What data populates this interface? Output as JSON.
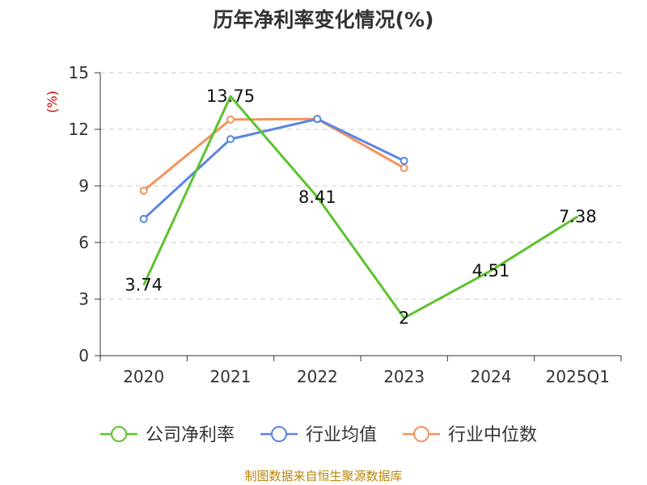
{
  "chart_data": {
    "type": "line",
    "title": "历年净利率变化情况(%)",
    "ylabel": "(%)",
    "xlabel": "",
    "categories": [
      "2020",
      "2021",
      "2022",
      "2023",
      "2024",
      "2025Q1"
    ],
    "ylim": [
      0,
      15
    ],
    "yticks": [
      0,
      3,
      6,
      9,
      12,
      15
    ],
    "grid": true,
    "legend_position": "bottom",
    "series": [
      {
        "name": "公司净利率",
        "color": "#5cc32f",
        "values": [
          3.74,
          13.75,
          8.41,
          2,
          4.51,
          7.38
        ],
        "labels": [
          "3.74",
          "13.75",
          "8.41",
          "2",
          "4.51",
          "7.38"
        ]
      },
      {
        "name": "行业均值",
        "color": "#5b86e0",
        "values": [
          7.25,
          11.48,
          12.55,
          10.33,
          null,
          null
        ]
      },
      {
        "name": "行业中位数",
        "color": "#f4935d",
        "values": [
          8.75,
          12.52,
          12.55,
          9.95,
          null,
          null
        ]
      }
    ],
    "source": "制图数据来自恒生聚源数据库"
  }
}
